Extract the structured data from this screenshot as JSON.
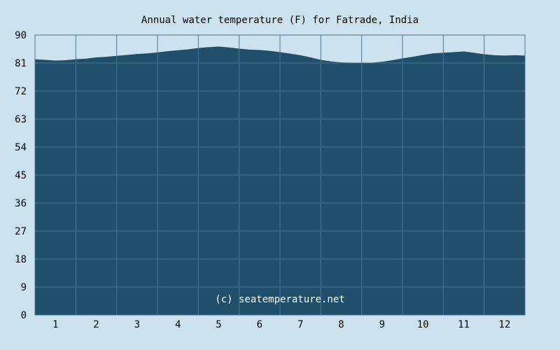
{
  "chart_data": {
    "type": "area",
    "title": "Annual water temperature (F) for Fatrade, India",
    "xlabel": "",
    "ylabel": "",
    "watermark": "(c) seatemperature.net",
    "xlim": [
      0.5,
      12.5
    ],
    "ylim": [
      0,
      90
    ],
    "yticks": [
      0,
      9,
      18,
      27,
      36,
      45,
      54,
      63,
      72,
      81,
      90
    ],
    "xticks": [
      1,
      2,
      3,
      4,
      5,
      6,
      7,
      8,
      9,
      10,
      11,
      12
    ],
    "grid": true,
    "colors": {
      "background": "#cce3ef",
      "fill": "#1f4f6b",
      "grid": "#4a7590",
      "text": "#000000",
      "watermark": "#ffffff"
    },
    "series": [
      {
        "values": [
          [
            0.5,
            82.2
          ],
          [
            0.75,
            82.0
          ],
          [
            1.0,
            81.8
          ],
          [
            1.25,
            81.9
          ],
          [
            1.5,
            82.2
          ],
          [
            1.75,
            82.4
          ],
          [
            2.0,
            82.8
          ],
          [
            2.25,
            83.0
          ],
          [
            2.5,
            83.3
          ],
          [
            2.75,
            83.6
          ],
          [
            3.0,
            83.9
          ],
          [
            3.25,
            84.1
          ],
          [
            3.5,
            84.4
          ],
          [
            3.75,
            84.8
          ],
          [
            4.0,
            85.1
          ],
          [
            4.25,
            85.4
          ],
          [
            4.5,
            85.8
          ],
          [
            4.75,
            86.1
          ],
          [
            5.0,
            86.3
          ],
          [
            5.25,
            86.0
          ],
          [
            5.5,
            85.6
          ],
          [
            5.75,
            85.3
          ],
          [
            6.0,
            85.2
          ],
          [
            6.25,
            84.9
          ],
          [
            6.5,
            84.5
          ],
          [
            6.75,
            84.0
          ],
          [
            7.0,
            83.5
          ],
          [
            7.25,
            82.8
          ],
          [
            7.5,
            82.0
          ],
          [
            7.75,
            81.5
          ],
          [
            8.0,
            81.2
          ],
          [
            8.25,
            81.1
          ],
          [
            8.5,
            81.0
          ],
          [
            8.75,
            81.1
          ],
          [
            9.0,
            81.4
          ],
          [
            9.25,
            81.9
          ],
          [
            9.5,
            82.5
          ],
          [
            9.75,
            83.0
          ],
          [
            10.0,
            83.6
          ],
          [
            10.25,
            84.1
          ],
          [
            10.5,
            84.3
          ],
          [
            10.75,
            84.5
          ],
          [
            11.0,
            84.7
          ],
          [
            11.25,
            84.3
          ],
          [
            11.5,
            83.8
          ],
          [
            11.75,
            83.5
          ],
          [
            12.0,
            83.4
          ],
          [
            12.25,
            83.5
          ],
          [
            12.5,
            83.4
          ]
        ]
      }
    ]
  }
}
